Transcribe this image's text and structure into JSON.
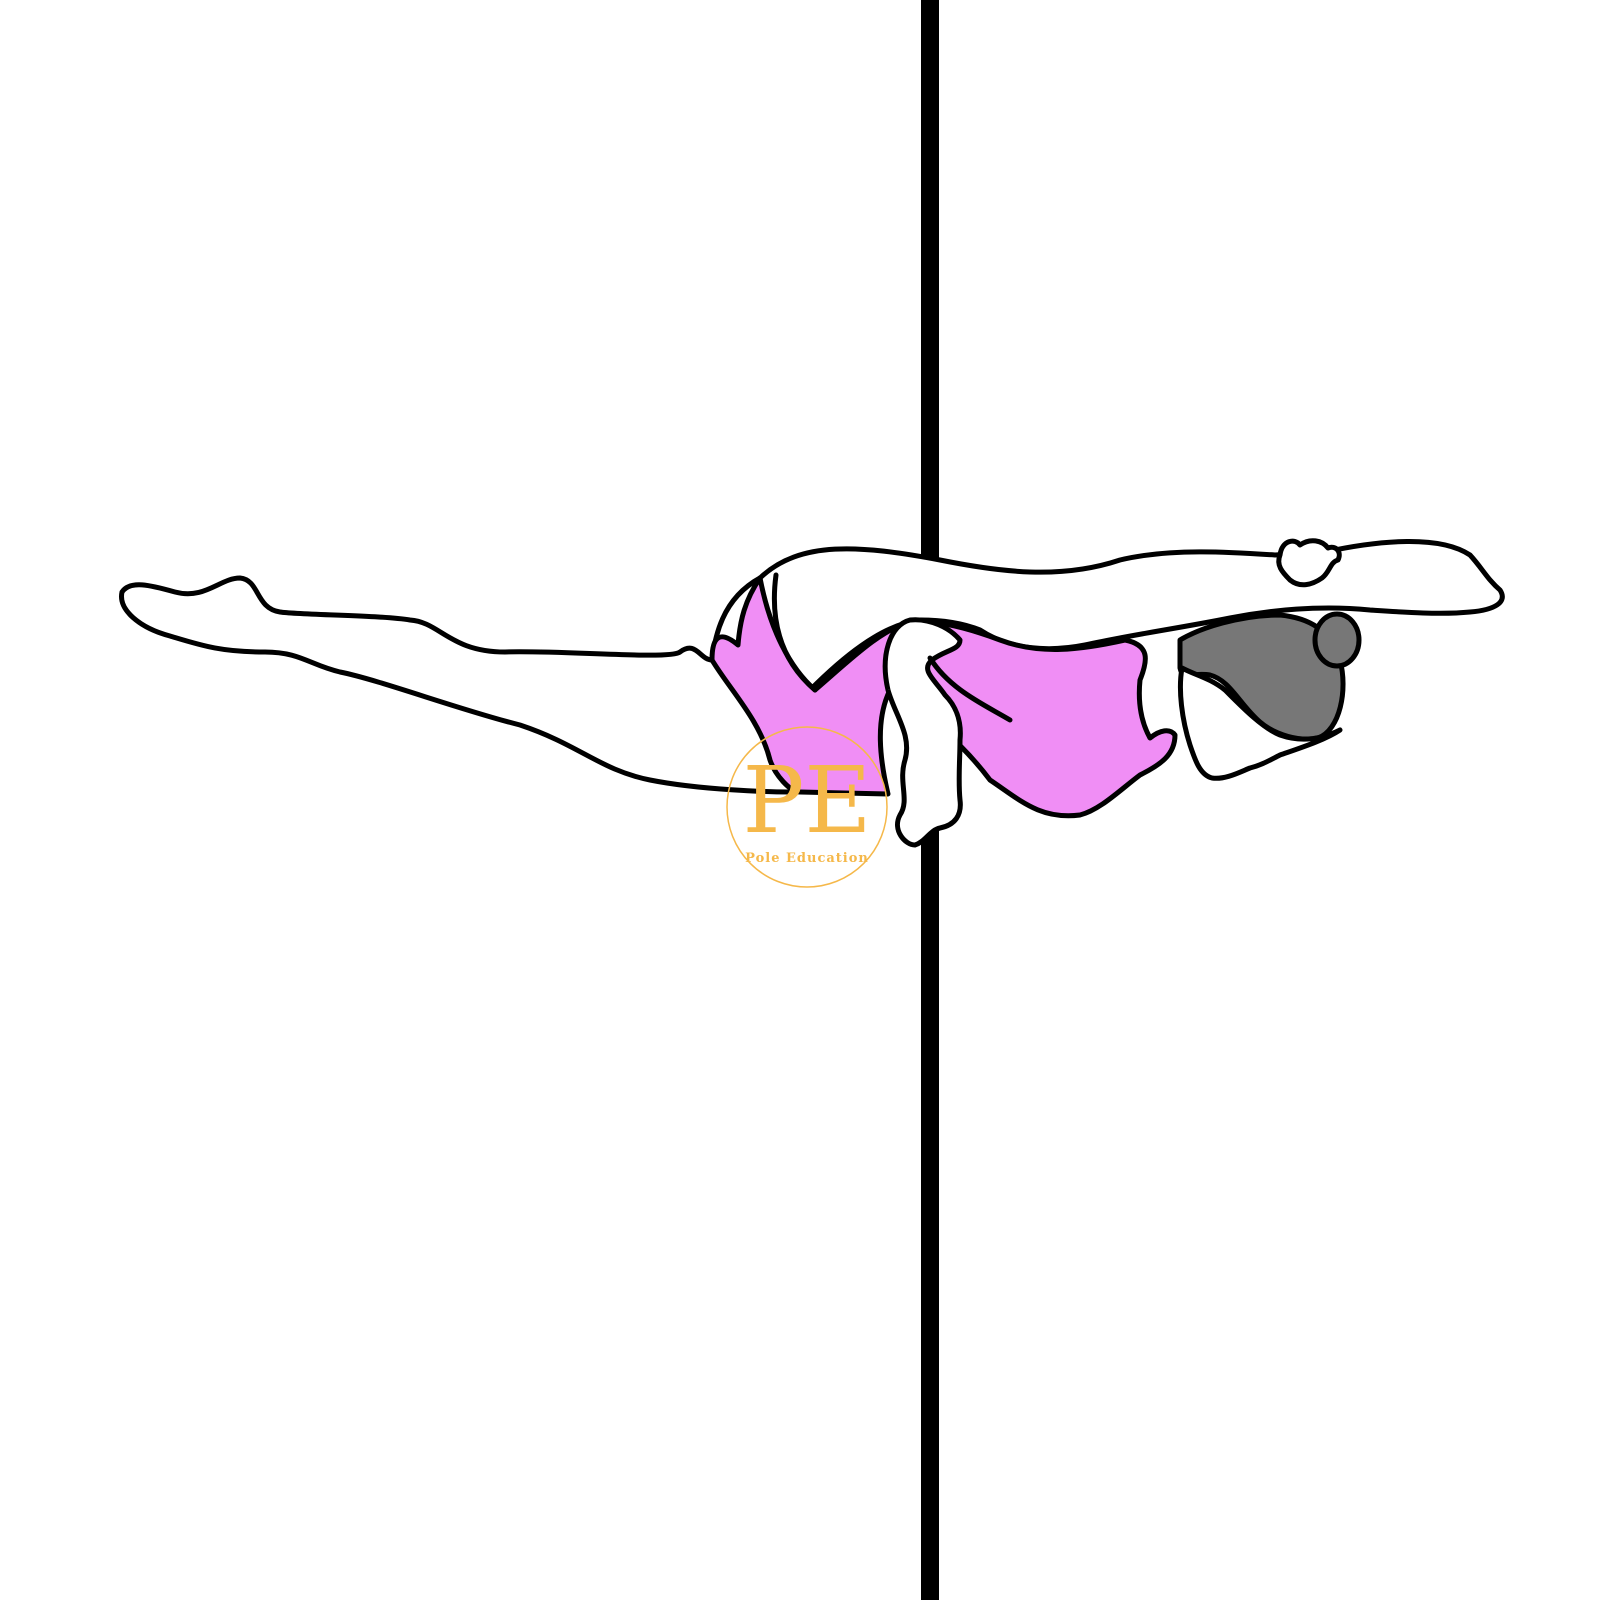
{
  "illustration": {
    "subject": "pole-figure",
    "colors": {
      "background": "#ffffff",
      "pole": "#000000",
      "outline": "#000000",
      "skin": "#ffffff",
      "leotard": "#f08ef5",
      "hair": "#777777"
    }
  },
  "watermark": {
    "letters": "PE",
    "subtitle": "Pole Education",
    "color": "#f5b84a"
  }
}
